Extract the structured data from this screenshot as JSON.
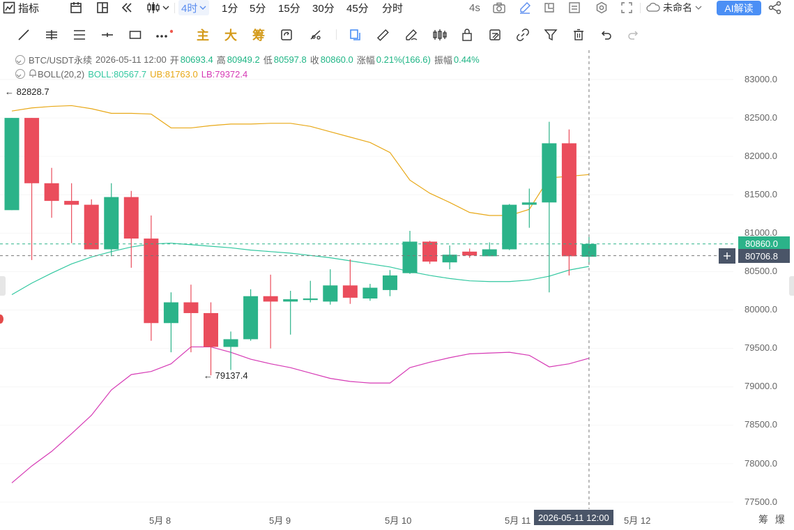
{
  "toolbar": {
    "indicators_label": "指标",
    "intervals": [
      "4时",
      "1分",
      "5分",
      "15分",
      "30分",
      "45分",
      "分时"
    ],
    "active_interval": "4时",
    "refresh_label": "4s",
    "layout_name": "未命名",
    "ai_label": "AI解读"
  },
  "drawbar": {
    "main_label": "主",
    "big_label": "大",
    "chip_label": "筹"
  },
  "legend": {
    "symbol": "BTC/USDT永续",
    "datetime": "2026-05-11 12:00",
    "open_label": "开",
    "open": "80693.4",
    "high_label": "高",
    "high": "80949.2",
    "low_label": "低",
    "low": "80597.8",
    "close_label": "收",
    "close": "80860.0",
    "change_label": "涨幅",
    "change": "0.21%(166.6)",
    "amplitude_label": "振幅",
    "amplitude": "0.44%",
    "boll_name": "BOLL(20,2)",
    "boll_mid": "BOLL:80567.7",
    "boll_ub": "UB:81763.0",
    "boll_lb": "LB:79372.4"
  },
  "annotations": {
    "max_marker": "← 82828.7",
    "min_marker": "← 79137.4"
  },
  "price_tags": {
    "last_price": "80860.0",
    "cursor_price": "80706.8",
    "cursor_time": "2026-05-11 12:00"
  },
  "axis": {
    "y_labels": [
      "83000.0",
      "82500.0",
      "82000.0",
      "81500.0",
      "81000.0",
      "80500.0",
      "80000.0",
      "79500.0",
      "79000.0",
      "78500.0",
      "78000.0",
      "77500.0"
    ],
    "x_labels": [
      "5月 8",
      "5月 9",
      "5月 10",
      "5月 11",
      "5月 12"
    ],
    "corner_label": "筹 爆"
  },
  "colors": {
    "up": "#2bb389",
    "down": "#ea4d5c",
    "boll_mid": "#32c8a0",
    "boll_ub": "#e8a817",
    "boll_lb": "#d63ab5",
    "accent": "#4b8ff5"
  },
  "chart_data": {
    "type": "candlestick",
    "title": "BTC/USDT永续",
    "interval": "4时",
    "ylim": [
      77500,
      83000
    ],
    "candles": [
      {
        "o": 81300,
        "h": 82500,
        "l": 81300,
        "c": 82500
      },
      {
        "o": 82500,
        "h": 82500,
        "l": 80650,
        "c": 81650
      },
      {
        "o": 81650,
        "h": 81850,
        "l": 81200,
        "c": 81420
      },
      {
        "o": 81420,
        "h": 81650,
        "l": 80870,
        "c": 81370
      },
      {
        "o": 81370,
        "h": 81440,
        "l": 80810,
        "c": 80790
      },
      {
        "o": 80790,
        "h": 81650,
        "l": 80700,
        "c": 81470
      },
      {
        "o": 81470,
        "h": 81550,
        "l": 80550,
        "c": 80930
      },
      {
        "o": 80930,
        "h": 81230,
        "l": 79600,
        "c": 79830
      },
      {
        "o": 79830,
        "h": 80230,
        "l": 79450,
        "c": 80100
      },
      {
        "o": 80100,
        "h": 80330,
        "l": 79450,
        "c": 79960
      },
      {
        "o": 79960,
        "h": 80100,
        "l": 79150,
        "c": 79520
      },
      {
        "o": 79520,
        "h": 79720,
        "l": 79220,
        "c": 79620
      },
      {
        "o": 79620,
        "h": 80270,
        "l": 79600,
        "c": 80180
      },
      {
        "o": 80180,
        "h": 80460,
        "l": 79500,
        "c": 80110
      },
      {
        "o": 80110,
        "h": 80250,
        "l": 79680,
        "c": 80140
      },
      {
        "o": 80130,
        "h": 80380,
        "l": 80100,
        "c": 80150
      },
      {
        "o": 80110,
        "h": 80530,
        "l": 80070,
        "c": 80320
      },
      {
        "o": 80320,
        "h": 80660,
        "l": 80080,
        "c": 80160
      },
      {
        "o": 80150,
        "h": 80340,
        "l": 80120,
        "c": 80290
      },
      {
        "o": 80260,
        "h": 80520,
        "l": 80180,
        "c": 80450
      },
      {
        "o": 80480,
        "h": 81030,
        "l": 80470,
        "c": 80890
      },
      {
        "o": 80890,
        "h": 80900,
        "l": 80600,
        "c": 80630
      },
      {
        "o": 80620,
        "h": 80840,
        "l": 80530,
        "c": 80720
      },
      {
        "o": 80760,
        "h": 80800,
        "l": 80680,
        "c": 80710
      },
      {
        "o": 80700,
        "h": 80880,
        "l": 80700,
        "c": 80790
      },
      {
        "o": 80790,
        "h": 81380,
        "l": 80780,
        "c": 81370
      },
      {
        "o": 81370,
        "h": 81580,
        "l": 81070,
        "c": 81400
      },
      {
        "o": 81400,
        "h": 82450,
        "l": 80230,
        "c": 82170
      },
      {
        "o": 82170,
        "h": 82350,
        "l": 80450,
        "c": 80700
      },
      {
        "o": 80693.4,
        "h": 80949.2,
        "l": 80597.8,
        "c": 80860
      }
    ],
    "boll_mid": [
      80200,
      80350,
      80480,
      80600,
      80690,
      80760,
      80820,
      80860,
      80870,
      80850,
      80830,
      80810,
      80780,
      80760,
      80740,
      80710,
      80680,
      80640,
      80600,
      80560,
      80500,
      80450,
      80410,
      80380,
      80370,
      80370,
      80390,
      80440,
      80520,
      80567.7
    ],
    "boll_ub": [
      82590,
      82630,
      82650,
      82660,
      82620,
      82560,
      82560,
      82550,
      82370,
      82370,
      82400,
      82420,
      82420,
      82430,
      82430,
      82390,
      82320,
      82250,
      82180,
      82050,
      81690,
      81520,
      81400,
      81270,
      81230,
      81230,
      81310,
      81720,
      81740,
      81763
    ],
    "boll_lb": [
      77750,
      77970,
      78160,
      78390,
      78630,
      78960,
      79160,
      79200,
      79300,
      79520,
      79520,
      79450,
      79360,
      79300,
      79250,
      79180,
      79110,
      79070,
      79050,
      79050,
      79250,
      79320,
      79380,
      79430,
      79440,
      79450,
      79410,
      79260,
      79300,
      79372.4
    ]
  }
}
